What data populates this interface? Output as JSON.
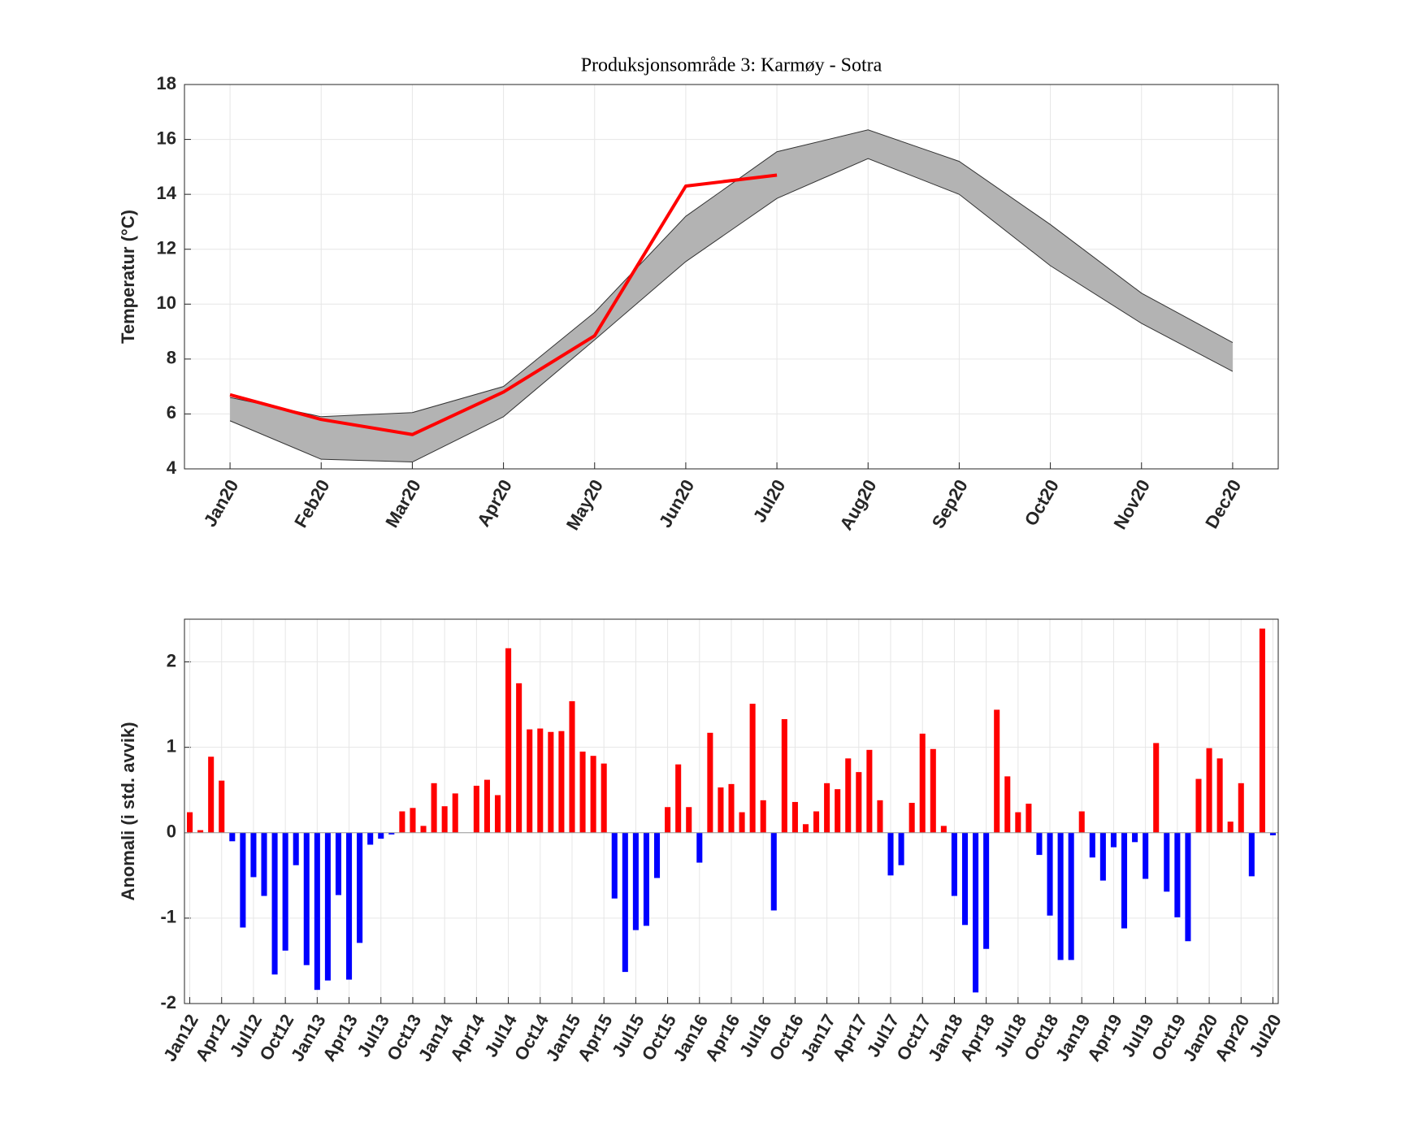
{
  "chart_data": [
    {
      "type": "line",
      "title": "Produksjonsområde 3: Karmøy - Sotra",
      "ylabel": "Temperatur (°C)",
      "categories": [
        "Jan20",
        "Feb20",
        "Mar20",
        "Apr20",
        "May20",
        "Jun20",
        "Jul20",
        "Aug20",
        "Sep20",
        "Oct20",
        "Nov20",
        "Dec20"
      ],
      "band": {
        "color": "#b3b3b3",
        "upper": [
          6.6,
          5.9,
          6.05,
          7.0,
          9.7,
          13.2,
          15.55,
          16.35,
          15.2,
          12.9,
          10.4,
          8.6
        ],
        "lower": [
          5.75,
          4.35,
          4.25,
          5.9,
          8.7,
          11.55,
          13.85,
          15.3,
          14.0,
          11.4,
          9.3,
          7.55
        ]
      },
      "series": [
        {
          "color": "#ff0000",
          "values": [
            6.7,
            5.8,
            5.25,
            6.8,
            8.85,
            14.3,
            14.7,
            null,
            null,
            null,
            null,
            null
          ]
        }
      ],
      "ylim": [
        4,
        18
      ],
      "yticks": [
        4,
        6,
        8,
        10,
        12,
        14,
        16,
        18
      ],
      "grid": true
    },
    {
      "type": "bar",
      "ylabel": "Anomali (i std. avvik)",
      "categories": [
        "Jan12",
        null,
        null,
        "Apr12",
        null,
        null,
        "Jul12",
        null,
        null,
        "Oct12",
        null,
        null,
        "Jan13",
        null,
        null,
        "Apr13",
        null,
        null,
        "Jul13",
        null,
        null,
        "Oct13",
        null,
        null,
        "Jan14",
        null,
        null,
        "Apr14",
        null,
        null,
        "Jul14",
        null,
        null,
        "Oct14",
        null,
        null,
        "Jan15",
        null,
        null,
        "Apr15",
        null,
        null,
        "Jul15",
        null,
        null,
        "Oct15",
        null,
        null,
        "Jan16",
        null,
        null,
        "Apr16",
        null,
        null,
        "Jul16",
        null,
        null,
        "Oct16",
        null,
        null,
        "Jan17",
        null,
        null,
        "Apr17",
        null,
        null,
        "Jul17",
        null,
        null,
        "Oct17",
        null,
        null,
        "Jan18",
        null,
        null,
        "Apr18",
        null,
        null,
        "Jul18",
        null,
        null,
        "Oct18",
        null,
        null,
        "Jan19",
        null,
        null,
        "Apr19",
        null,
        null,
        "Jul19",
        null,
        null,
        "Oct19",
        null,
        null,
        "Jan20",
        null,
        null,
        "Apr20",
        null,
        null,
        "Jul20"
      ],
      "values": [
        0.24,
        0.03,
        0.89,
        0.61,
        -0.1,
        -1.11,
        -0.52,
        -0.74,
        -1.66,
        -1.38,
        -0.38,
        -1.55,
        -1.84,
        -1.73,
        -0.73,
        -1.72,
        -1.29,
        -0.14,
        -0.07,
        -0.02,
        0.25,
        0.29,
        0.08,
        0.58,
        0.31,
        0.46,
        0,
        0.55,
        0.62,
        0.44,
        2.16,
        1.75,
        1.21,
        1.22,
        1.18,
        1.19,
        1.54,
        0.95,
        0.9,
        0.81,
        -0.77,
        -1.63,
        -1.14,
        -1.09,
        -0.53,
        0.3,
        0.8,
        0.3,
        -0.35,
        1.17,
        0.53,
        0.57,
        0.24,
        1.51,
        0.38,
        -0.91,
        1.33,
        0.36,
        0.1,
        0.25,
        0.58,
        0.51,
        0.87,
        0.71,
        0.97,
        0.38,
        -0.5,
        -0.38,
        0.35,
        1.16,
        0.98,
        0.08,
        -0.74,
        -1.08,
        -1.87,
        -1.36,
        1.44,
        0.66,
        0.24,
        0.34,
        -0.26,
        -0.97,
        -1.49,
        -1.49,
        0.25,
        -0.29,
        -0.56,
        -0.17,
        -1.12,
        -0.11,
        -0.54,
        1.05,
        -0.69,
        -0.99,
        -1.27,
        0.63,
        0.99,
        0.87,
        0.13,
        0.58,
        -0.51,
        2.39,
        -0.03
      ],
      "positive_color": "#ff0000",
      "negative_color": "#0000ff",
      "ylim": [
        -2,
        2.5
      ],
      "yticks": [
        -2,
        -1,
        0,
        1,
        2
      ],
      "grid": true
    }
  ]
}
